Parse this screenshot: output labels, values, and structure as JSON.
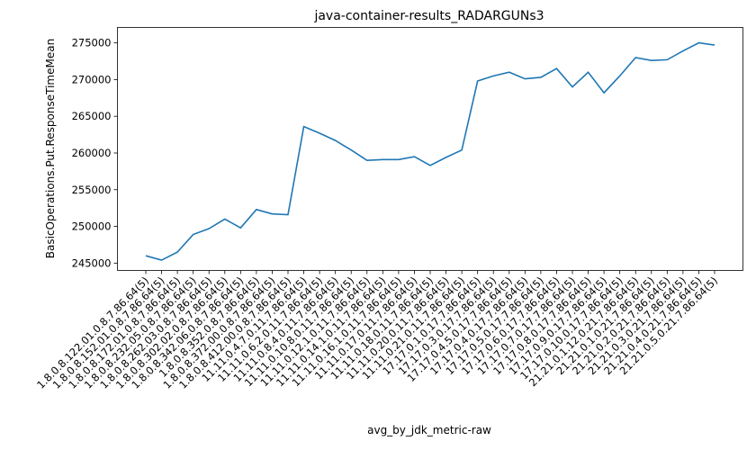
{
  "chart_data": {
    "type": "line",
    "title": "java-container-results_RADARGUNs3",
    "x_label": "avg_by_jdk_metric-raw",
    "y_label": "BasicOperations.Put.ResponseTimeMean",
    "categories": [
      "1.8.0.8.122.01.0.8.7.86.64(5)",
      "1.8.0.8.152.01.0.8.7.86.64(5)",
      "1.8.0.8.172.01.0.8.7.86.64(5)",
      "1.8.0.8.232.05.0.8.7.86.64(5)",
      "1.8.0.8.262.03.0.8.7.86.64(5)",
      "1.8.0.8.302.02.0.8.7.86.64(5)",
      "1.8.0.8.342.06.0.8.7.86.64(5)",
      "1.8.0.8.352.0.8.7.86.64(5)",
      "1.8.0.8.372.00.0.8.7.86.64(5)",
      "1.8.0.8.412.00.0.8.7.86.64(5)",
      "11.11.0.4.7.0.11.7.86.64(5)",
      "11.11.0.6.2.0.11.7.86.64(5)",
      "11.11.0.8.4.0.11.7.86.64(5)",
      "11.11.0.10.8.0.11.7.86.64(5)",
      "11.11.0.12.1.0.11.7.86.64(5)",
      "11.11.0.14.1.0.11.7.86.64(5)",
      "11.11.0.16.1.0.11.7.86.64(5)",
      "11.11.0.17.0.11.7.86.64(5)",
      "11.11.0.18.0.11.7.86.64(5)",
      "11.11.0.20.0.11.7.86.64(5)",
      "11.11.0.21.0.11.7.86.64(5)",
      "17.17.0.1.0.17.7.86.64(5)",
      "17.17.0.3.0.17.7.86.64(5)",
      "17.17.0.4.5.0.17.7.86.64(5)",
      "17.17.0.4.0.17.7.86.64(5)",
      "17.17.0.5.0.17.7.86.64(5)",
      "17.17.0.6.0.17.7.86.64(5)",
      "17.17.0.7.0.17.7.86.64(5)",
      "17.17.0.8.0.17.7.86.64(5)",
      "17.17.0.9.0.17.7.86.64(5)",
      "17.17.0.10.0.17.7.86.64(5)",
      "21.21.0.1.12.0.21.7.86.64(5)",
      "21.21.0.1.0.21.7.86.64(5)",
      "21.21.0.2.0.21.7.86.64(5)",
      "21.21.0.3.0.21.7.86.64(5)",
      "21.21.0.4.0.21.7.86.64(5)",
      "21.21.0.5.0.21.7.86.64(5)"
    ],
    "values": [
      246000,
      245400,
      246500,
      248900,
      249700,
      251000,
      249800,
      252300,
      251700,
      251600,
      263600,
      262700,
      261700,
      260400,
      259000,
      259100,
      259100,
      259500,
      258300,
      259400,
      260400,
      269800,
      270500,
      271000,
      270100,
      270300,
      271500,
      269000,
      271000,
      268200,
      270500,
      273000,
      272600,
      272700,
      273900,
      275000,
      274700
    ],
    "color": "#1f77b4",
    "ylim": [
      244000,
      277100
    ],
    "yticks": [
      245000,
      250000,
      255000,
      260000,
      265000,
      270000,
      275000
    ]
  }
}
